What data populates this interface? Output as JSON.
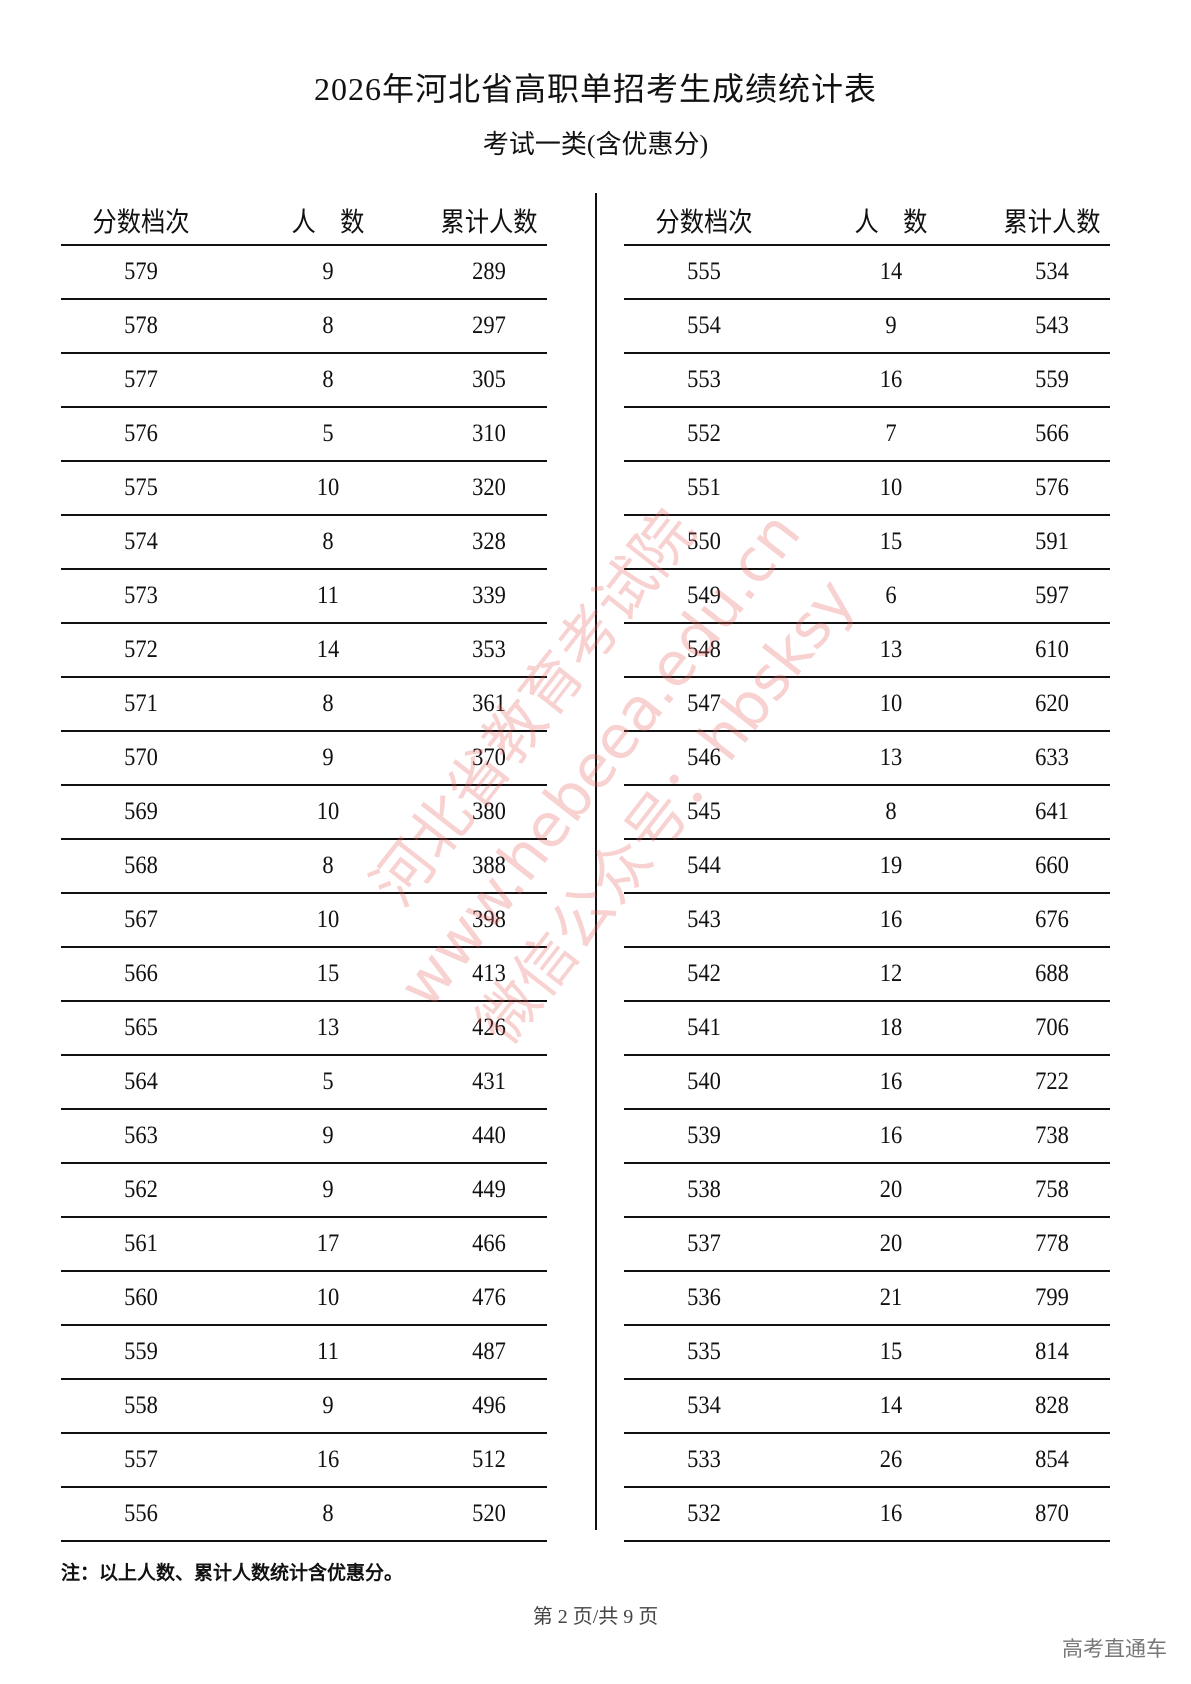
{
  "title": "2026年河北省高职单招考生成绩统计表",
  "subtitle": "考试一类(含优惠分)",
  "headers": [
    "分数档次",
    "人　数",
    "累计人数"
  ],
  "left_rows": [
    [
      "579",
      "9",
      "289"
    ],
    [
      "578",
      "8",
      "297"
    ],
    [
      "577",
      "8",
      "305"
    ],
    [
      "576",
      "5",
      "310"
    ],
    [
      "575",
      "10",
      "320"
    ],
    [
      "574",
      "8",
      "328"
    ],
    [
      "573",
      "11",
      "339"
    ],
    [
      "572",
      "14",
      "353"
    ],
    [
      "571",
      "8",
      "361"
    ],
    [
      "570",
      "9",
      "370"
    ],
    [
      "569",
      "10",
      "380"
    ],
    [
      "568",
      "8",
      "388"
    ],
    [
      "567",
      "10",
      "398"
    ],
    [
      "566",
      "15",
      "413"
    ],
    [
      "565",
      "13",
      "426"
    ],
    [
      "564",
      "5",
      "431"
    ],
    [
      "563",
      "9",
      "440"
    ],
    [
      "562",
      "9",
      "449"
    ],
    [
      "561",
      "17",
      "466"
    ],
    [
      "560",
      "10",
      "476"
    ],
    [
      "559",
      "11",
      "487"
    ],
    [
      "558",
      "9",
      "496"
    ],
    [
      "557",
      "16",
      "512"
    ],
    [
      "556",
      "8",
      "520"
    ]
  ],
  "right_rows": [
    [
      "555",
      "14",
      "534"
    ],
    [
      "554",
      "9",
      "543"
    ],
    [
      "553",
      "16",
      "559"
    ],
    [
      "552",
      "7",
      "566"
    ],
    [
      "551",
      "10",
      "576"
    ],
    [
      "550",
      "15",
      "591"
    ],
    [
      "549",
      "6",
      "597"
    ],
    [
      "548",
      "13",
      "610"
    ],
    [
      "547",
      "10",
      "620"
    ],
    [
      "546",
      "13",
      "633"
    ],
    [
      "545",
      "8",
      "641"
    ],
    [
      "544",
      "19",
      "660"
    ],
    [
      "543",
      "16",
      "676"
    ],
    [
      "542",
      "12",
      "688"
    ],
    [
      "541",
      "18",
      "706"
    ],
    [
      "540",
      "16",
      "722"
    ],
    [
      "539",
      "16",
      "738"
    ],
    [
      "538",
      "20",
      "758"
    ],
    [
      "537",
      "20",
      "778"
    ],
    [
      "536",
      "21",
      "799"
    ],
    [
      "535",
      "15",
      "814"
    ],
    [
      "534",
      "14",
      "828"
    ],
    [
      "533",
      "26",
      "854"
    ],
    [
      "532",
      "16",
      "870"
    ]
  ],
  "note": "注：以上人数、累计人数统计含优惠分。",
  "page_indicator": "第 2 页/共 9 页",
  "brand": "高考直通车",
  "watermark": [
    "河北省教育考试院",
    "www.hebeea.edu.cn",
    "微信公众号：hbsksy"
  ]
}
